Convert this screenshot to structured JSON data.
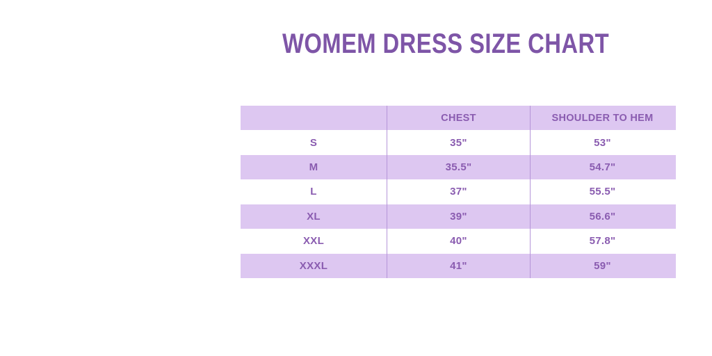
{
  "title": "WOMEM DRESS SIZE CHART",
  "chart_data": {
    "type": "table",
    "title": "WOMEM DRESS SIZE CHART",
    "columns": [
      "",
      "CHEST",
      "SHOULDER TO HEM"
    ],
    "rows": [
      [
        "S",
        "35\"",
        "53\""
      ],
      [
        "M",
        "35.5\"",
        "54.7\""
      ],
      [
        "L",
        "37\"",
        "55.5\""
      ],
      [
        "XL",
        "39\"",
        "56.6\""
      ],
      [
        "XXL",
        "40\"",
        "57.8\""
      ],
      [
        "XXXL",
        "41\"",
        "59\""
      ]
    ],
    "layout": {
      "row_fill": [
        "lavender-header",
        "white",
        "lavender",
        "white",
        "lavender",
        "white",
        "lavender"
      ],
      "column_dividers": true,
      "outer_border": false
    }
  },
  "colors": {
    "background": "#ffffff",
    "title_text": "#7e55a7",
    "cell_text": "#8a5cb0",
    "band_fill": "#ddc7f1",
    "divider": "#b595d8"
  }
}
